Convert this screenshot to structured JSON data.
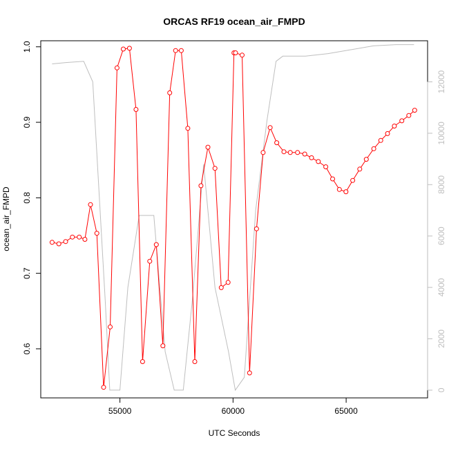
{
  "chart_data": {
    "type": "line",
    "title": "ORCAS RF19 ocean_air_FMPD",
    "xlabel": "UTC Seconds",
    "ylabel": "ocean_air_FMPD",
    "xlim": [
      51500,
      68600
    ],
    "ylim": [
      0.535,
      1.008
    ],
    "y2lim": [
      -300,
      13600
    ],
    "x_ticks": [
      55000,
      60000,
      65000
    ],
    "x_tick_labels": [
      "55000",
      "60000",
      "65000"
    ],
    "y_ticks": [
      0.6,
      0.7,
      0.8,
      0.9,
      1.0
    ],
    "y_tick_labels": [
      "0.6",
      "0.7",
      "0.8",
      "0.9",
      "1.0"
    ],
    "y2_ticks": [
      0,
      2000,
      4000,
      6000,
      8000,
      10000,
      12000
    ],
    "y2_tick_labels": [
      "0",
      "2000",
      "4000",
      "6000",
      "8000",
      "10000",
      "12000"
    ],
    "grid": false,
    "series": [
      {
        "axis": "left",
        "color": "#ff0000",
        "style": "line+points",
        "x": [
          52000,
          52300,
          52600,
          52900,
          53200,
          53450,
          53700,
          53980,
          54280,
          54570,
          54870,
          55150,
          55420,
          55710,
          56000,
          56320,
          56610,
          56900,
          57200,
          57460,
          57710,
          58000,
          58310,
          58580,
          58890,
          59200,
          59480,
          59780,
          60040,
          60110,
          60400,
          60730,
          61040,
          61330,
          61640,
          61930,
          62250,
          62530,
          62850,
          63170,
          63470,
          63770,
          64100,
          64400,
          64700,
          64990,
          65290,
          65600,
          65890,
          66220,
          66530,
          66830,
          67130,
          67460,
          67770,
          68030
        ],
        "y": [
          0.741,
          0.739,
          0.742,
          0.748,
          0.748,
          0.745,
          0.791,
          0.753,
          0.549,
          0.629,
          0.972,
          0.997,
          0.998,
          0.917,
          0.583,
          0.716,
          0.738,
          0.604,
          0.939,
          0.995,
          0.995,
          0.892,
          0.583,
          0.816,
          0.867,
          0.839,
          0.681,
          0.688,
          0.992,
          0.992,
          0.989,
          0.568,
          0.759,
          0.86,
          0.893,
          0.873,
          0.861,
          0.86,
          0.86,
          0.858,
          0.853,
          0.848,
          0.841,
          0.825,
          0.811,
          0.808,
          0.823,
          0.838,
          0.851,
          0.865,
          0.876,
          0.885,
          0.895,
          0.902,
          0.909,
          0.916
        ]
      },
      {
        "axis": "right",
        "color": "#bebebe",
        "style": "line",
        "x": [
          52000,
          52600,
          53400,
          53800,
          54350,
          54550,
          55000,
          55350,
          55850,
          56500,
          57000,
          57400,
          57800,
          58200,
          58700,
          59200,
          59800,
          60100,
          60500,
          61000,
          61500,
          61900,
          62200,
          63200,
          64200,
          65200,
          66200,
          67200,
          68000
        ],
        "y": [
          12700,
          12750,
          12800,
          12000,
          3500,
          0,
          0,
          4000,
          6800,
          6800,
          1500,
          0,
          0,
          3500,
          8800,
          4000,
          1500,
          0,
          500,
          7000,
          10500,
          12800,
          13000,
          13000,
          13100,
          13250,
          13400,
          13450,
          13450
        ]
      }
    ]
  }
}
